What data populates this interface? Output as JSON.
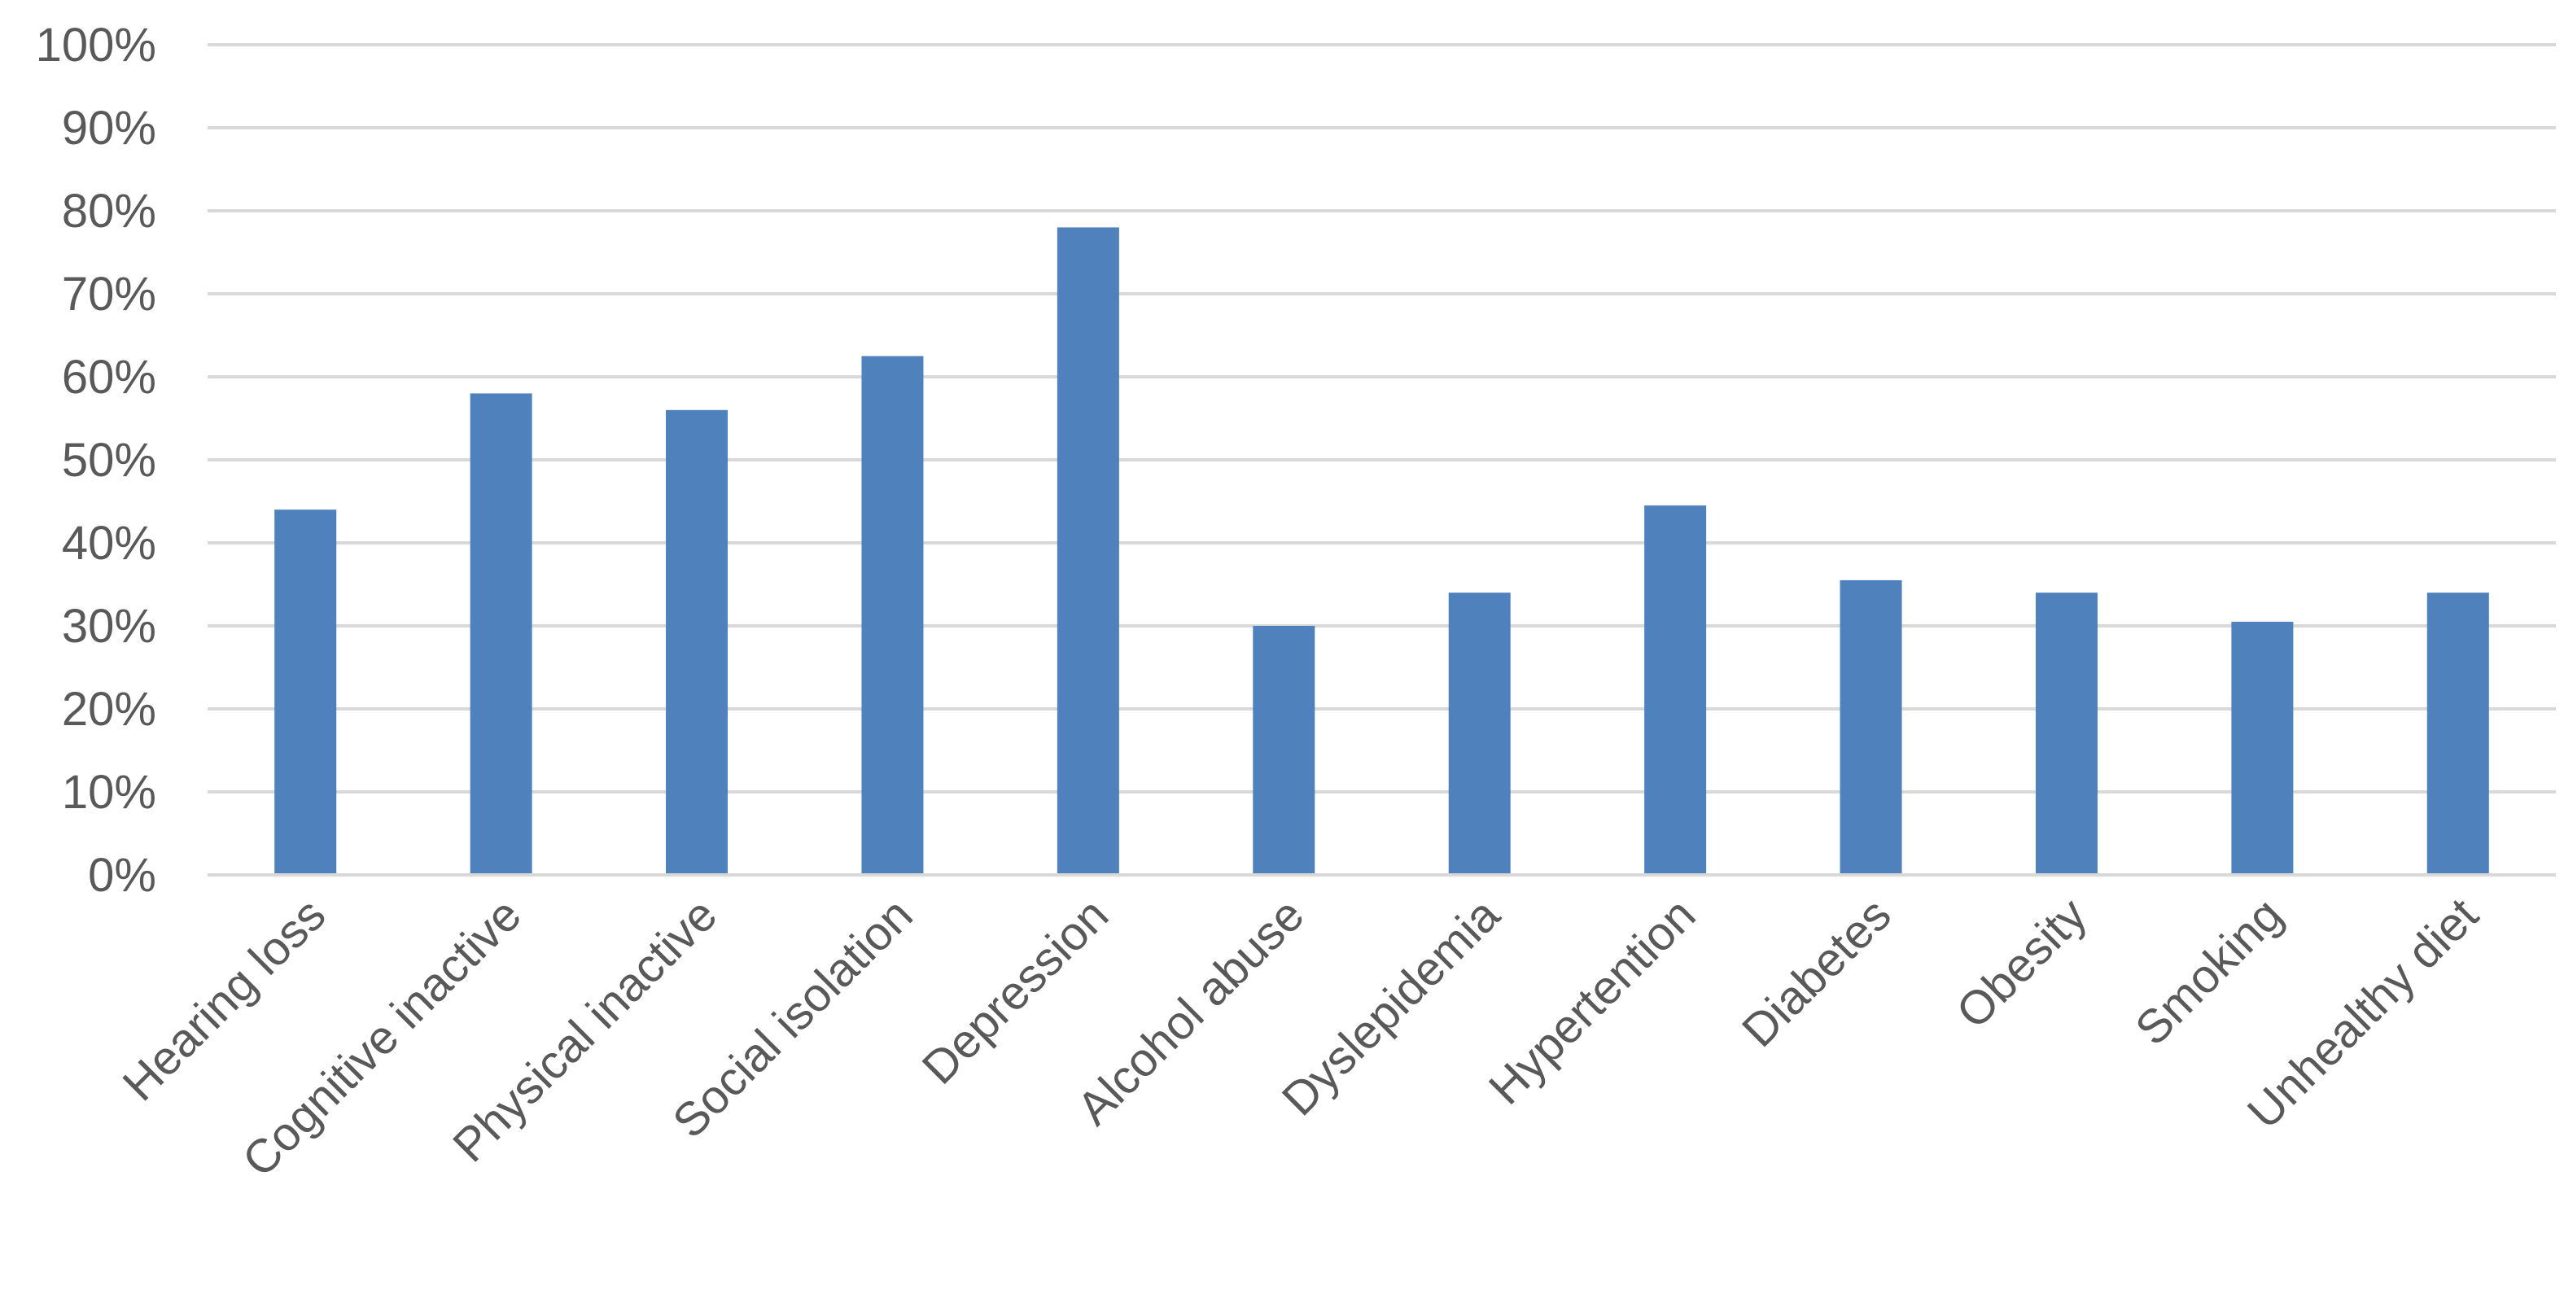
{
  "chart_data": {
    "type": "bar",
    "categories": [
      "Hearing loss",
      "Cognitive inactive",
      "Physical inactive",
      "Social isolation",
      "Depression",
      "Alcohol abuse",
      "Dyslepidemia",
      "Hypertention",
      "Diabetes",
      "Obesity",
      "Smoking",
      "Unhealthy diet"
    ],
    "values": [
      44,
      58,
      56,
      62.5,
      78,
      30,
      34,
      44.5,
      35.5,
      34,
      30.5,
      34
    ],
    "ylim": [
      0,
      100
    ],
    "yticks": [
      0,
      10,
      20,
      30,
      40,
      50,
      60,
      70,
      80,
      90,
      100
    ],
    "ytick_labels": [
      "0%",
      "10%",
      "20%",
      "30%",
      "40%",
      "50%",
      "60%",
      "70%",
      "80%",
      "90%",
      "100%"
    ],
    "grid": true,
    "colors": {
      "bar": "#4f81bd",
      "grid": "#d9d9d9",
      "text": "#595959"
    }
  }
}
